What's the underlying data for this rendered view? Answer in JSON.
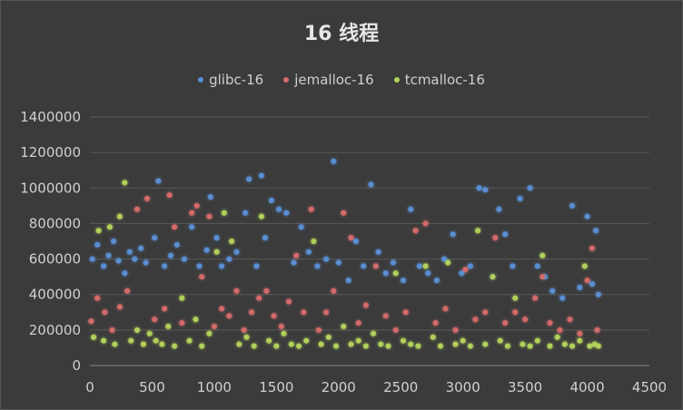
{
  "chart_data": {
    "type": "scatter",
    "title": "16 线程",
    "xlabel": "",
    "ylabel": "",
    "xlim": [
      0,
      4500
    ],
    "ylim": [
      0,
      1400000
    ],
    "xticks": [
      0,
      500,
      1000,
      1500,
      2000,
      2500,
      3000,
      3500,
      4000,
      4500
    ],
    "yticks": [
      0,
      200000,
      400000,
      600000,
      800000,
      1000000,
      1200000,
      1400000
    ],
    "grid": true,
    "legend": "top",
    "series": [
      {
        "name": "glibc-16",
        "color": "#5b8fd6",
        "points": [
          [
            20,
            600000
          ],
          [
            60,
            680000
          ],
          [
            110,
            560000
          ],
          [
            150,
            620000
          ],
          [
            190,
            700000
          ],
          [
            230,
            590000
          ],
          [
            280,
            520000
          ],
          [
            320,
            640000
          ],
          [
            360,
            600000
          ],
          [
            410,
            660000
          ],
          [
            450,
            580000
          ],
          [
            520,
            720000
          ],
          [
            550,
            1040000
          ],
          [
            600,
            560000
          ],
          [
            650,
            620000
          ],
          [
            700,
            680000
          ],
          [
            760,
            600000
          ],
          [
            820,
            780000
          ],
          [
            880,
            560000
          ],
          [
            940,
            650000
          ],
          [
            970,
            950000
          ],
          [
            1020,
            720000
          ],
          [
            1060,
            560000
          ],
          [
            1120,
            600000
          ],
          [
            1180,
            640000
          ],
          [
            1250,
            860000
          ],
          [
            1280,
            1050000
          ],
          [
            1340,
            560000
          ],
          [
            1380,
            1070000
          ],
          [
            1410,
            720000
          ],
          [
            1460,
            930000
          ],
          [
            1520,
            880000
          ],
          [
            1580,
            860000
          ],
          [
            1640,
            580000
          ],
          [
            1700,
            780000
          ],
          [
            1760,
            640000
          ],
          [
            1830,
            560000
          ],
          [
            1900,
            600000
          ],
          [
            1960,
            1150000
          ],
          [
            2000,
            580000
          ],
          [
            2080,
            480000
          ],
          [
            2140,
            700000
          ],
          [
            2200,
            560000
          ],
          [
            2260,
            1020000
          ],
          [
            2320,
            640000
          ],
          [
            2380,
            520000
          ],
          [
            2440,
            580000
          ],
          [
            2520,
            480000
          ],
          [
            2580,
            880000
          ],
          [
            2650,
            560000
          ],
          [
            2720,
            520000
          ],
          [
            2790,
            480000
          ],
          [
            2850,
            600000
          ],
          [
            2920,
            740000
          ],
          [
            2990,
            520000
          ],
          [
            3060,
            560000
          ],
          [
            3130,
            1000000
          ],
          [
            3180,
            990000
          ],
          [
            3240,
            500000
          ],
          [
            3290,
            880000
          ],
          [
            3340,
            740000
          ],
          [
            3400,
            560000
          ],
          [
            3460,
            940000
          ],
          [
            3540,
            1000000
          ],
          [
            3600,
            560000
          ],
          [
            3660,
            500000
          ],
          [
            3720,
            420000
          ],
          [
            3800,
            380000
          ],
          [
            3880,
            900000
          ],
          [
            3940,
            440000
          ],
          [
            4000,
            840000
          ],
          [
            4040,
            460000
          ],
          [
            4070,
            760000
          ],
          [
            4090,
            400000
          ]
        ]
      },
      {
        "name": "jemalloc-16",
        "color": "#d76b6b",
        "points": [
          [
            10,
            250000
          ],
          [
            60,
            380000
          ],
          [
            120,
            300000
          ],
          [
            180,
            200000
          ],
          [
            240,
            330000
          ],
          [
            300,
            420000
          ],
          [
            380,
            880000
          ],
          [
            460,
            940000
          ],
          [
            520,
            260000
          ],
          [
            600,
            320000
          ],
          [
            640,
            960000
          ],
          [
            680,
            780000
          ],
          [
            740,
            240000
          ],
          [
            820,
            860000
          ],
          [
            860,
            900000
          ],
          [
            900,
            500000
          ],
          [
            960,
            840000
          ],
          [
            1000,
            220000
          ],
          [
            1060,
            320000
          ],
          [
            1120,
            280000
          ],
          [
            1180,
            420000
          ],
          [
            1240,
            200000
          ],
          [
            1300,
            300000
          ],
          [
            1360,
            380000
          ],
          [
            1420,
            420000
          ],
          [
            1480,
            280000
          ],
          [
            1540,
            220000
          ],
          [
            1600,
            360000
          ],
          [
            1660,
            620000
          ],
          [
            1720,
            300000
          ],
          [
            1780,
            880000
          ],
          [
            1840,
            200000
          ],
          [
            1900,
            300000
          ],
          [
            1960,
            420000
          ],
          [
            2040,
            860000
          ],
          [
            2100,
            720000
          ],
          [
            2160,
            240000
          ],
          [
            2220,
            340000
          ],
          [
            2300,
            560000
          ],
          [
            2380,
            280000
          ],
          [
            2460,
            200000
          ],
          [
            2540,
            300000
          ],
          [
            2620,
            760000
          ],
          [
            2700,
            800000
          ],
          [
            2780,
            240000
          ],
          [
            2860,
            320000
          ],
          [
            2940,
            200000
          ],
          [
            3020,
            540000
          ],
          [
            3100,
            260000
          ],
          [
            3180,
            300000
          ],
          [
            3260,
            720000
          ],
          [
            3340,
            240000
          ],
          [
            3420,
            300000
          ],
          [
            3500,
            260000
          ],
          [
            3580,
            380000
          ],
          [
            3640,
            500000
          ],
          [
            3700,
            240000
          ],
          [
            3780,
            200000
          ],
          [
            3860,
            260000
          ],
          [
            3940,
            180000
          ],
          [
            4000,
            480000
          ],
          [
            4040,
            660000
          ],
          [
            4080,
            200000
          ]
        ]
      },
      {
        "name": "tcmalloc-16",
        "color": "#b4d35b",
        "points": [
          [
            30,
            160000
          ],
          [
            70,
            760000
          ],
          [
            110,
            140000
          ],
          [
            160,
            780000
          ],
          [
            200,
            120000
          ],
          [
            240,
            840000
          ],
          [
            280,
            1030000
          ],
          [
            330,
            140000
          ],
          [
            380,
            200000
          ],
          [
            430,
            120000
          ],
          [
            480,
            180000
          ],
          [
            530,
            140000
          ],
          [
            580,
            120000
          ],
          [
            630,
            220000
          ],
          [
            680,
            110000
          ],
          [
            740,
            380000
          ],
          [
            800,
            140000
          ],
          [
            850,
            260000
          ],
          [
            900,
            110000
          ],
          [
            960,
            180000
          ],
          [
            1020,
            640000
          ],
          [
            1080,
            860000
          ],
          [
            1140,
            700000
          ],
          [
            1200,
            120000
          ],
          [
            1260,
            160000
          ],
          [
            1320,
            110000
          ],
          [
            1380,
            840000
          ],
          [
            1440,
            140000
          ],
          [
            1500,
            110000
          ],
          [
            1560,
            180000
          ],
          [
            1620,
            120000
          ],
          [
            1680,
            110000
          ],
          [
            1740,
            140000
          ],
          [
            1800,
            700000
          ],
          [
            1860,
            120000
          ],
          [
            1920,
            160000
          ],
          [
            1980,
            110000
          ],
          [
            2040,
            220000
          ],
          [
            2100,
            120000
          ],
          [
            2160,
            140000
          ],
          [
            2220,
            110000
          ],
          [
            2280,
            180000
          ],
          [
            2340,
            120000
          ],
          [
            2400,
            110000
          ],
          [
            2460,
            520000
          ],
          [
            2520,
            140000
          ],
          [
            2580,
            120000
          ],
          [
            2640,
            110000
          ],
          [
            2700,
            560000
          ],
          [
            2760,
            160000
          ],
          [
            2820,
            110000
          ],
          [
            2880,
            580000
          ],
          [
            2940,
            120000
          ],
          [
            3000,
            140000
          ],
          [
            3060,
            110000
          ],
          [
            3120,
            760000
          ],
          [
            3180,
            120000
          ],
          [
            3240,
            500000
          ],
          [
            3300,
            140000
          ],
          [
            3360,
            110000
          ],
          [
            3420,
            380000
          ],
          [
            3480,
            120000
          ],
          [
            3540,
            110000
          ],
          [
            3600,
            140000
          ],
          [
            3640,
            620000
          ],
          [
            3700,
            110000
          ],
          [
            3760,
            160000
          ],
          [
            3820,
            120000
          ],
          [
            3880,
            110000
          ],
          [
            3940,
            140000
          ],
          [
            3980,
            560000
          ],
          [
            4020,
            110000
          ],
          [
            4060,
            120000
          ],
          [
            4090,
            110000
          ]
        ]
      }
    ]
  }
}
